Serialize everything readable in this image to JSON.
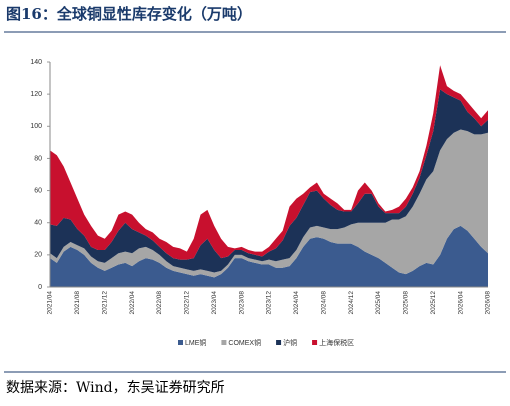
{
  "chart_data": {
    "type": "stacked_area",
    "title": "图16：全球铜显性库存变化（万吨）",
    "source": "数据来源：Wind，东吴证券研究所",
    "categories": [
      "2021/04",
      null,
      null,
      null,
      "2021/08",
      null,
      null,
      null,
      "2021/12",
      null,
      null,
      null,
      "2022/04",
      null,
      null,
      null,
      "2022/08",
      null,
      null,
      null,
      "2022/12",
      null,
      null,
      null,
      "2023/04",
      null,
      null,
      null,
      "2023/08",
      null,
      null,
      null,
      "2023/12",
      null,
      null,
      null,
      "2024/04",
      null,
      null,
      null,
      "2024/08",
      null,
      null,
      null,
      "2024/12",
      null,
      null,
      null,
      "2025/04",
      null,
      null,
      null,
      "2025/08",
      null,
      null,
      null,
      "2025/12",
      null,
      null,
      null,
      "2026/04",
      null,
      null,
      null,
      "2026/08"
    ],
    "series": [
      {
        "name": "LME铜",
        "color": "#3b5b8f",
        "values": [
          18,
          15,
          22,
          25,
          23,
          20,
          15,
          12,
          10,
          12,
          14,
          15,
          13,
          16,
          18,
          17,
          15,
          12,
          10,
          9,
          8,
          7,
          8,
          7,
          6,
          8,
          12,
          18,
          18,
          16,
          15,
          14,
          14,
          12,
          12,
          13,
          18,
          25,
          30,
          31,
          30,
          28,
          27,
          27,
          27,
          25,
          22,
          20,
          18,
          15,
          12,
          9,
          8,
          10,
          13,
          15,
          14,
          20,
          30,
          36,
          38,
          35,
          30,
          25,
          21
        ]
      },
      {
        "name": "COMEX铜",
        "color": "#a6a6a6",
        "values": [
          3,
          3,
          3,
          3,
          3,
          4,
          4,
          4,
          5,
          6,
          7,
          7,
          8,
          8,
          7,
          6,
          5,
          4,
          3,
          3,
          3,
          3,
          3,
          3,
          3,
          2,
          2,
          2,
          2,
          2,
          2,
          2,
          3,
          4,
          5,
          5,
          5,
          6,
          7,
          7,
          7,
          8,
          9,
          10,
          12,
          15,
          18,
          20,
          22,
          25,
          30,
          33,
          36,
          40,
          45,
          52,
          58,
          65,
          62,
          60,
          60,
          62,
          65,
          70,
          75
        ]
      },
      {
        "name": "沪铜",
        "color": "#1c3257",
        "values": [
          18,
          20,
          18,
          14,
          10,
          8,
          6,
          7,
          8,
          10,
          14,
          18,
          15,
          10,
          7,
          6,
          5,
          5,
          5,
          5,
          6,
          8,
          15,
          20,
          14,
          8,
          5,
          3,
          3,
          3,
          3,
          3,
          5,
          8,
          12,
          20,
          20,
          20,
          22,
          22,
          18,
          15,
          12,
          10,
          8,
          12,
          18,
          18,
          10,
          6,
          4,
          4,
          6,
          8,
          10,
          15,
          25,
          38,
          28,
          22,
          18,
          12,
          10,
          5,
          8
        ]
      },
      {
        "name": "上海保税区",
        "color": "#c8102e",
        "values": [
          46,
          44,
          32,
          23,
          19,
          13,
          13,
          9,
          7,
          7,
          10,
          7,
          9,
          6,
          4,
          5,
          5,
          7,
          7,
          7,
          5,
          12,
          19,
          18,
          15,
          12,
          6,
          1,
          2,
          2,
          2,
          3,
          3,
          6,
          6,
          12,
          12,
          7,
          3,
          5,
          3,
          4,
          4,
          1,
          1,
          8,
          7,
          2,
          2,
          1,
          2,
          4,
          5,
          4,
          4,
          6,
          11,
          15,
          5,
          4,
          4,
          6,
          5,
          5,
          6
        ]
      }
    ],
    "ylim": [
      0,
      140
    ],
    "yticks": [
      0,
      20,
      40,
      60,
      80,
      100,
      120,
      140
    ],
    "legend": "bottom"
  }
}
